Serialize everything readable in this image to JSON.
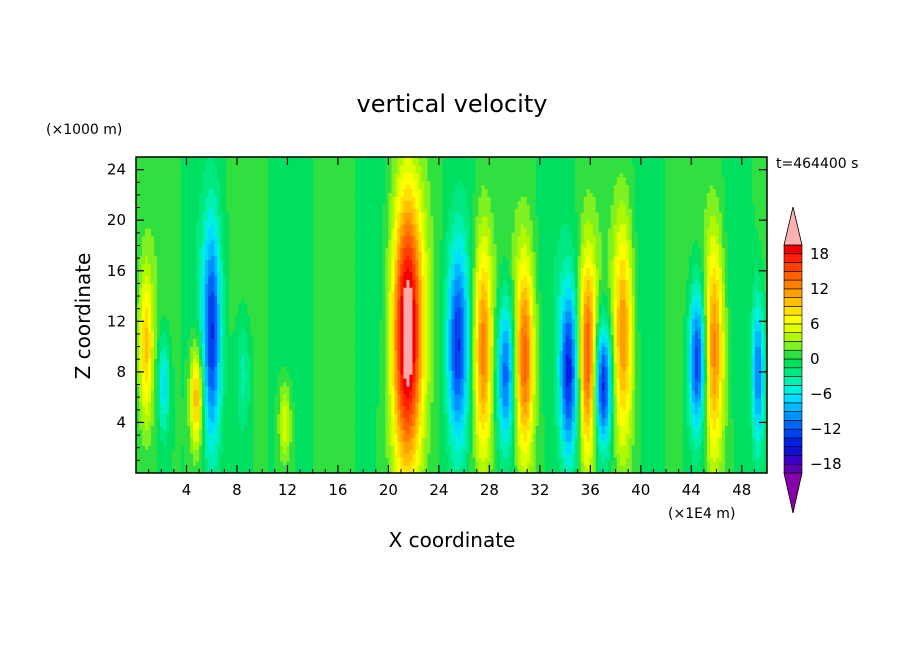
{
  "chart_data": {
    "type": "heatmap",
    "title": "vertical velocity",
    "xlabel": "X coordinate",
    "ylabel": "Z coordinate",
    "x_unit": "(×1E4 m)",
    "y_unit": "(×1000 m)",
    "time_label": "t=464400 s",
    "xlim": [
      0,
      50
    ],
    "ylim": [
      0,
      25
    ],
    "x_ticks": [
      4,
      8,
      12,
      16,
      20,
      24,
      28,
      32,
      36,
      40,
      44,
      48
    ],
    "y_ticks": [
      4,
      8,
      12,
      16,
      20,
      24
    ],
    "x_tick_labels": [
      "4",
      "8",
      "12",
      "16",
      "20",
      "24",
      "28",
      "32",
      "36",
      "40",
      "44",
      "48"
    ],
    "y_tick_labels": [
      "4",
      "8",
      "12",
      "16",
      "20",
      "24"
    ],
    "background_value": 0,
    "plumes": [
      {
        "x": 0.8,
        "zc": 10,
        "halfwidth": 0.55,
        "halfheight": 6,
        "amp": 9
      },
      {
        "x": 2.2,
        "zc": 7,
        "halfwidth": 0.45,
        "halfheight": 4,
        "amp": -7
      },
      {
        "x": 4.8,
        "zc": 6,
        "halfwidth": 0.5,
        "halfheight": 4,
        "amp": 11
      },
      {
        "x": 6.0,
        "zc": 11,
        "halfwidth": 0.75,
        "halfheight": 9,
        "amp": -13
      },
      {
        "x": 8.5,
        "zc": 8,
        "halfwidth": 0.6,
        "halfheight": 5,
        "amp": -4
      },
      {
        "x": 11.8,
        "zc": 4,
        "halfwidth": 0.45,
        "halfheight": 3,
        "amp": 6
      },
      {
        "x": 21.5,
        "zc": 11,
        "halfwidth": 1.2,
        "halfheight": 11,
        "amp": 22
      },
      {
        "x": 25.5,
        "zc": 10,
        "halfwidth": 0.85,
        "halfheight": 8,
        "amp": -13
      },
      {
        "x": 27.5,
        "zc": 10,
        "halfwidth": 0.75,
        "halfheight": 9,
        "amp": 13
      },
      {
        "x": 29.3,
        "zc": 8,
        "halfwidth": 0.7,
        "halfheight": 6,
        "amp": -12
      },
      {
        "x": 30.8,
        "zc": 9,
        "halfwidth": 0.75,
        "halfheight": 8,
        "amp": 14
      },
      {
        "x": 34.3,
        "zc": 8,
        "halfwidth": 0.75,
        "halfheight": 7,
        "amp": -14
      },
      {
        "x": 35.8,
        "zc": 9,
        "halfwidth": 0.7,
        "halfheight": 8,
        "amp": 15
      },
      {
        "x": 37.0,
        "zc": 7,
        "halfwidth": 0.7,
        "halfheight": 5,
        "amp": -15
      },
      {
        "x": 38.6,
        "zc": 11,
        "halfwidth": 0.8,
        "halfheight": 9,
        "amp": 12
      },
      {
        "x": 44.5,
        "zc": 9,
        "halfwidth": 0.7,
        "halfheight": 6,
        "amp": -14
      },
      {
        "x": 45.8,
        "zc": 10,
        "halfwidth": 0.8,
        "halfheight": 9,
        "amp": 13
      },
      {
        "x": 49.3,
        "zc": 8,
        "halfwidth": 0.5,
        "halfheight": 6,
        "amp": -11
      }
    ],
    "colorbar": {
      "levels": [
        -21,
        -19.5,
        -18,
        -16.5,
        -15,
        -13.5,
        -12,
        -10.5,
        -9,
        -7.5,
        -6,
        -4.5,
        -3,
        -1.5,
        0,
        1.5,
        3,
        4.5,
        6,
        7.5,
        9,
        10.5,
        12,
        13.5,
        15,
        16.5,
        18,
        19.5,
        21
      ],
      "colors": [
        "#7a0099",
        "#5a00b0",
        "#3a00c8",
        "#1010d0",
        "#0022e0",
        "#0044f0",
        "#0066f8",
        "#0090ff",
        "#00b8ff",
        "#00dcff",
        "#00f0e0",
        "#00f0b0",
        "#00e880",
        "#00e060",
        "#30e040",
        "#80f020",
        "#b0f800",
        "#e0ff00",
        "#ffff00",
        "#ffe000",
        "#ffc000",
        "#ffa000",
        "#ff8000",
        "#ff6000",
        "#ff4000",
        "#ff2000",
        "#f00000",
        "#ffa8a8"
      ],
      "tick_values": [
        18,
        12,
        6,
        0,
        -6,
        -12,
        -18
      ],
      "tick_labels": [
        "18",
        "12",
        "6",
        "0",
        "−6",
        "−12",
        "−18"
      ],
      "min_arrow_color": "#8800aa",
      "max_arrow_color": "#ffb0b0"
    }
  }
}
